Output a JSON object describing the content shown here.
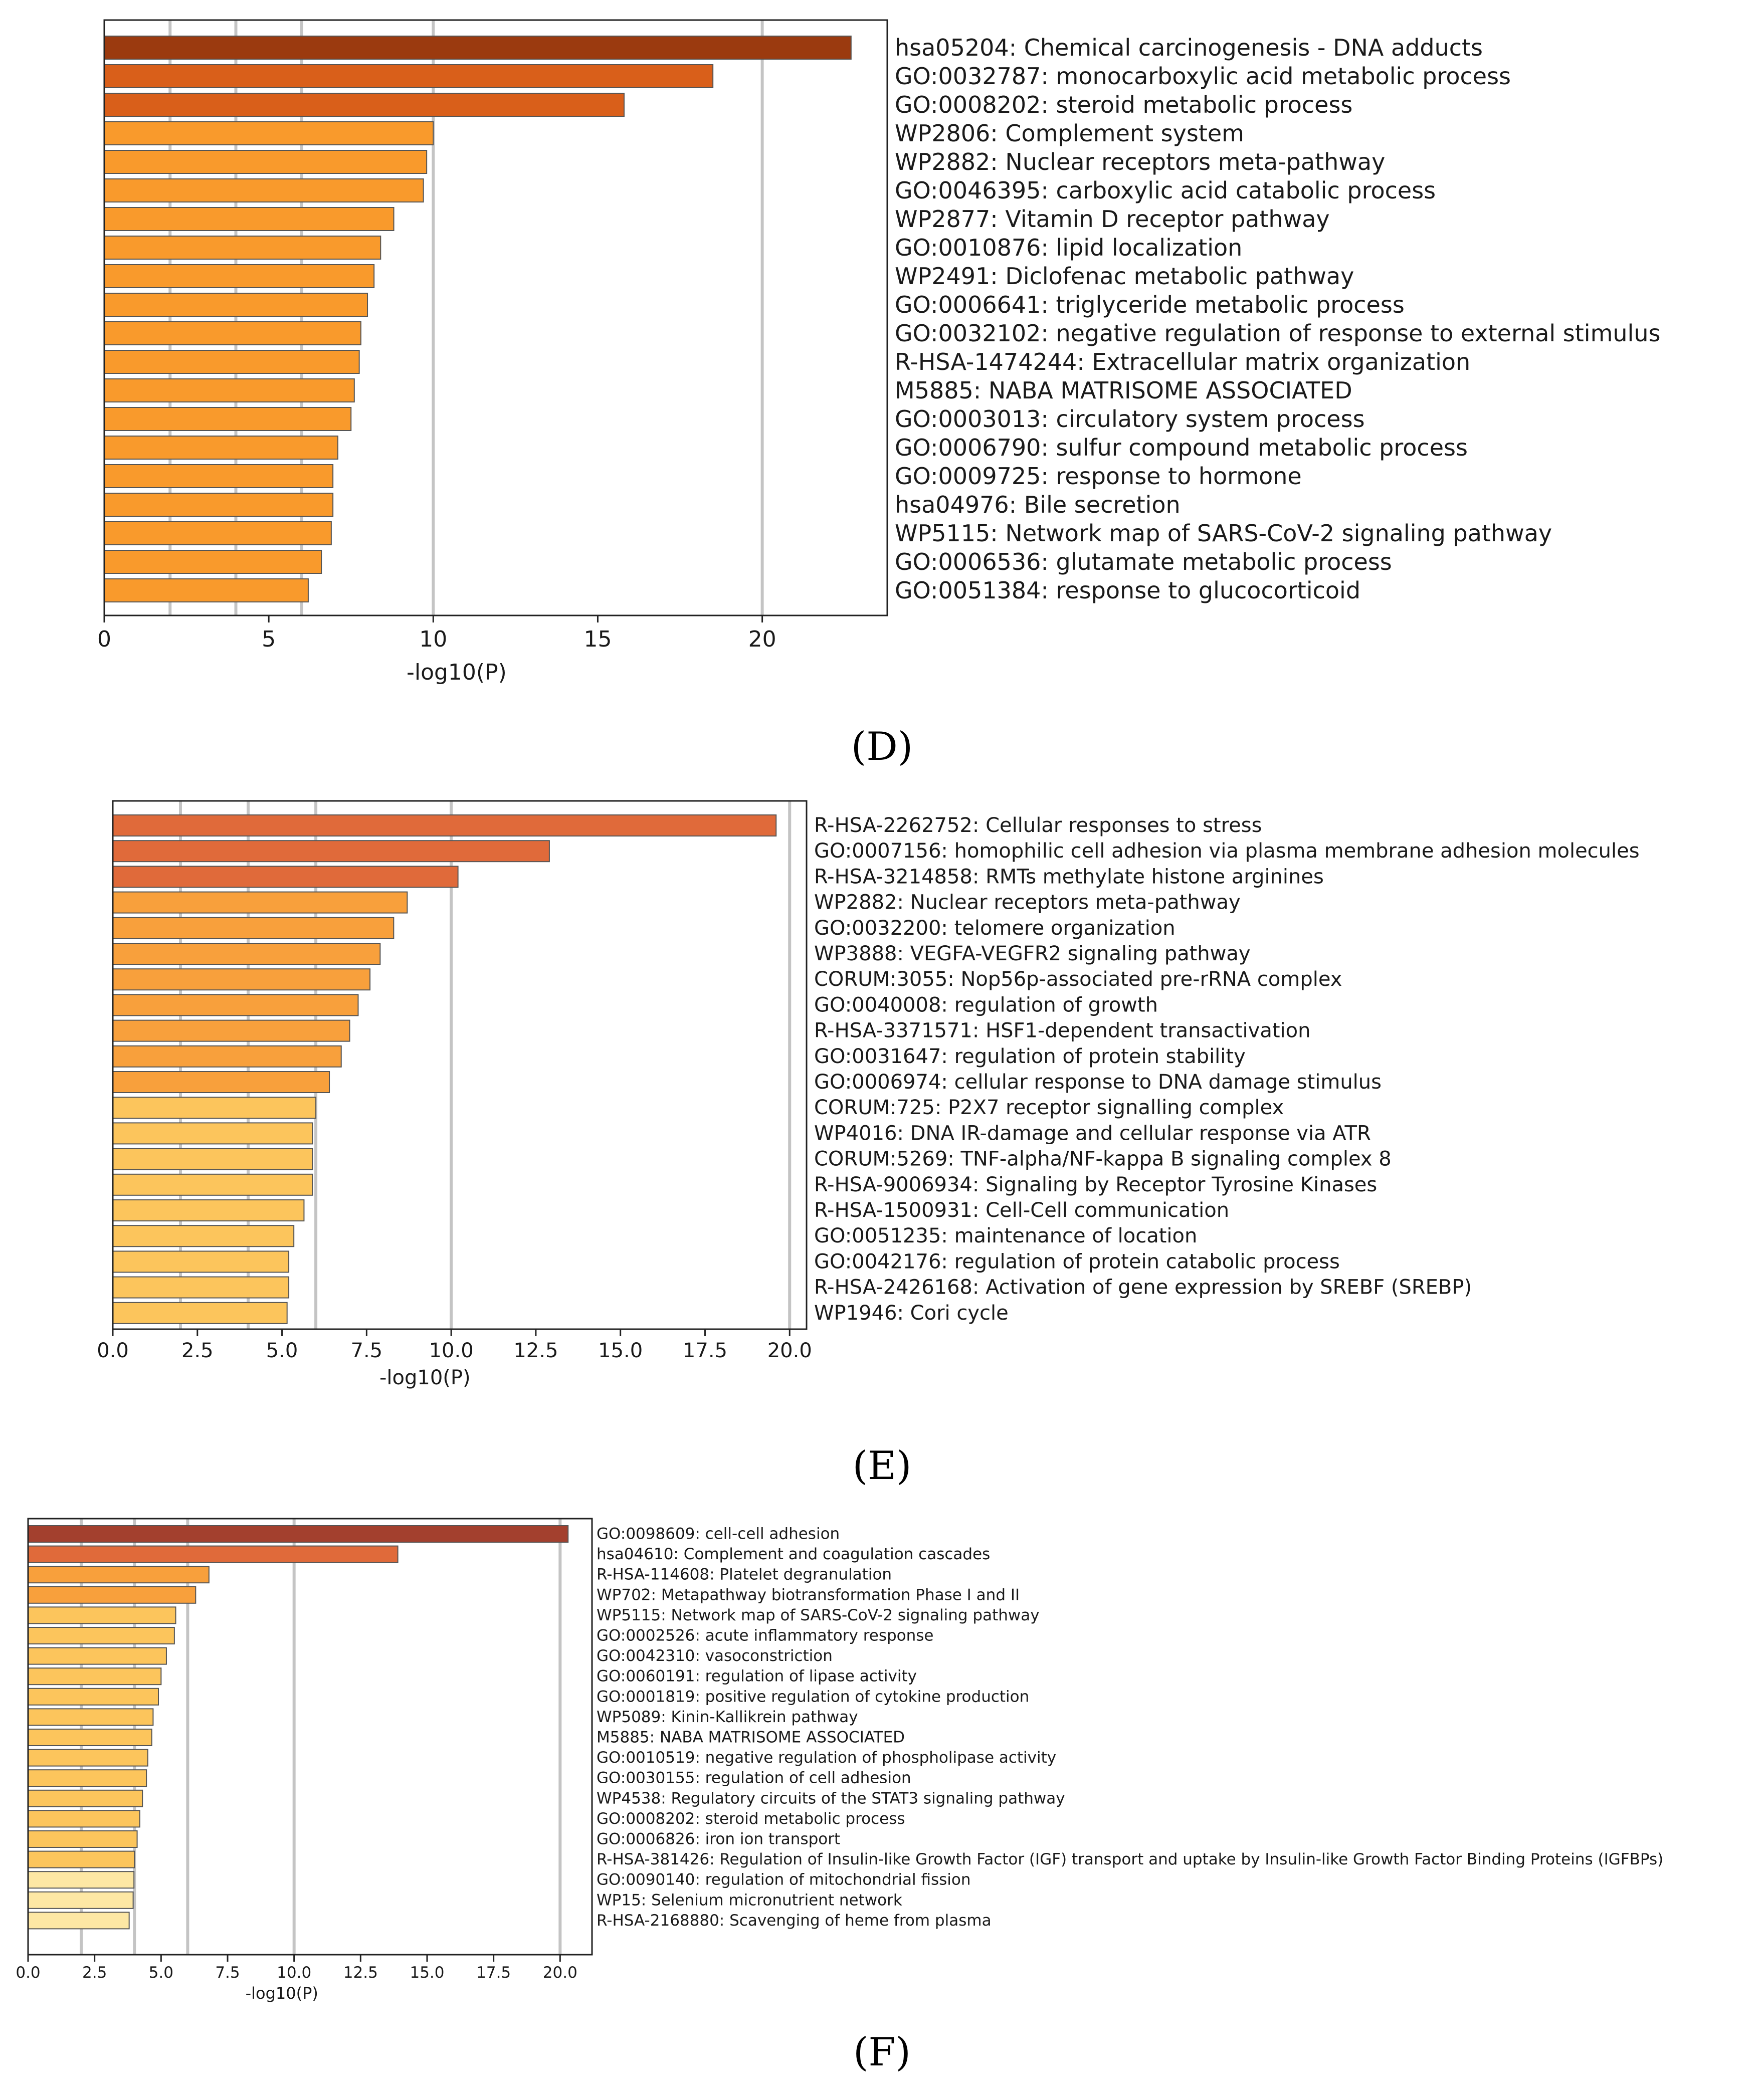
{
  "chart_data": [
    {
      "panel": "D",
      "type": "bar",
      "orientation": "horizontal",
      "xlabel": "-log10(P)",
      "xlim": [
        0,
        23.8
      ],
      "xticks": [
        0,
        5,
        10,
        15,
        20
      ],
      "xtick_labels": [
        "0",
        "5",
        "10",
        "15",
        "20"
      ],
      "gridlines": [
        2,
        4,
        6,
        10,
        20
      ],
      "categories": [
        "hsa05204: Chemical carcinogenesis - DNA adducts",
        "GO:0032787: monocarboxylic acid metabolic process",
        "GO:0008202: steroid metabolic process",
        "WP2806: Complement system",
        "WP2882: Nuclear receptors meta-pathway",
        "GO:0046395: carboxylic acid catabolic process",
        "WP2877: Vitamin D receptor pathway",
        "GO:0010876: lipid localization",
        "WP2491: Diclofenac metabolic pathway",
        "GO:0006641: triglyceride metabolic process",
        "GO:0032102: negative regulation of response to external stimulus",
        "R-HSA-1474244: Extracellular matrix organization",
        "M5885: NABA MATRISOME ASSOCIATED",
        "GO:0003013: circulatory system process",
        "GO:0006790: sulfur compound metabolic process",
        "GO:0009725: response to hormone",
        "hsa04976: Bile secretion",
        "WP5115: Network map of SARS-CoV-2 signaling pathway",
        "GO:0006536: glutamate metabolic process",
        "GO:0051384: response to glucocorticoid"
      ],
      "values": [
        22.7,
        18.5,
        15.8,
        10.0,
        9.8,
        9.7,
        8.8,
        8.4,
        8.2,
        8.0,
        7.8,
        7.75,
        7.6,
        7.5,
        7.1,
        6.95,
        6.95,
        6.9,
        6.6,
        6.2
      ],
      "colors": [
        "#9b3a0f",
        "#d95f1a",
        "#d95f1a",
        "#f99a2c",
        "#f99a2c",
        "#f99a2c",
        "#f99a2c",
        "#f99a2c",
        "#f99a2c",
        "#f99a2c",
        "#f99a2c",
        "#f99a2c",
        "#f99a2c",
        "#f99a2c",
        "#f99a2c",
        "#f99a2c",
        "#f99a2c",
        "#f99a2c",
        "#f99a2c",
        "#f99a2c"
      ]
    },
    {
      "panel": "E",
      "type": "bar",
      "orientation": "horizontal",
      "xlabel": "-log10(P)",
      "xlim": [
        0,
        20.5
      ],
      "xticks": [
        0,
        2.5,
        5,
        7.5,
        10,
        12.5,
        15,
        17.5,
        20
      ],
      "xtick_labels": [
        "0.0",
        "2.5",
        "5.0",
        "7.5",
        "10.0",
        "12.5",
        "15.0",
        "17.5",
        "20.0"
      ],
      "gridlines": [
        2,
        4,
        6,
        10,
        20
      ],
      "categories": [
        "R-HSA-2262752: Cellular responses to stress",
        "GO:0007156: homophilic cell adhesion via plasma membrane adhesion molecules",
        "R-HSA-3214858: RMTs methylate histone arginines",
        "WP2882: Nuclear receptors meta-pathway",
        "GO:0032200: telomere organization",
        "WP3888: VEGFA-VEGFR2 signaling pathway",
        "CORUM:3055: Nop56p-associated pre-rRNA complex",
        "GO:0040008: regulation of growth",
        "R-HSA-3371571: HSF1-dependent transactivation",
        "GO:0031647: regulation of protein stability",
        "GO:0006974: cellular response to DNA damage stimulus",
        "CORUM:725: P2X7 receptor signalling complex",
        "WP4016: DNA IR-damage and cellular response via ATR",
        "CORUM:5269: TNF-alpha/NF-kappa B signaling complex 8",
        "R-HSA-9006934: Signaling by Receptor Tyrosine Kinases",
        "R-HSA-1500931: Cell-Cell communication",
        "GO:0051235: maintenance of location",
        "GO:0042176: regulation of protein catabolic process",
        "R-HSA-2426168: Activation of gene expression by SREBF (SREBP)",
        "WP1946: Cori cycle"
      ],
      "values": [
        19.6,
        12.9,
        10.2,
        8.7,
        8.3,
        7.9,
        7.6,
        7.25,
        7.0,
        6.75,
        6.4,
        6.0,
        5.9,
        5.9,
        5.9,
        5.65,
        5.35,
        5.2,
        5.2,
        5.15
      ],
      "colors": [
        "#e06a3a",
        "#e06a3a",
        "#e06a3a",
        "#f8a03c",
        "#f8a03c",
        "#f8a03c",
        "#f8a03c",
        "#f8a03c",
        "#f8a03c",
        "#f8a03c",
        "#f8a03c",
        "#fcc55c",
        "#fcc55c",
        "#fcc55c",
        "#fcc55c",
        "#fcc55c",
        "#fcc55c",
        "#fcc55c",
        "#fcc55c",
        "#fcc55c"
      ]
    },
    {
      "panel": "F",
      "type": "bar",
      "orientation": "horizontal",
      "xlabel": "-log10(P)",
      "xlim": [
        0,
        21.2
      ],
      "xticks": [
        0,
        2.5,
        5,
        7.5,
        10,
        12.5,
        15,
        17.5,
        20
      ],
      "xtick_labels": [
        "0.0",
        "2.5",
        "5.0",
        "7.5",
        "10.0",
        "12.5",
        "15.0",
        "17.5",
        "20.0"
      ],
      "gridlines": [
        2,
        4,
        6,
        10,
        20
      ],
      "categories": [
        "GO:0098609: cell-cell adhesion",
        "hsa04610: Complement and coagulation cascades",
        "R-HSA-114608: Platelet degranulation",
        "WP702: Metapathway biotransformation Phase I and II",
        "WP5115: Network map of SARS-CoV-2 signaling pathway",
        "GO:0002526: acute inflammatory response",
        "GO:0042310: vasoconstriction",
        "GO:0060191: regulation of lipase activity",
        "GO:0001819: positive regulation of cytokine production",
        "WP5089: Kinin-Kallikrein pathway",
        "M5885: NABA MATRISOME ASSOCIATED",
        "GO:0010519: negative regulation of phospholipase activity",
        "GO:0030155: regulation of cell adhesion",
        "WP4538: Regulatory circuits of the STAT3 signaling pathway",
        "GO:0008202: steroid metabolic process",
        "GO:0006826: iron ion transport",
        "R-HSA-381426: Regulation of Insulin-like Growth Factor (IGF) transport and uptake by Insulin-like Growth Factor Binding Proteins (IGFBPs)",
        "GO:0090140: regulation of mitochondrial fission",
        "WP15: Selenium micronutrient network",
        "R-HSA-2168880: Scavenging of heme from plasma"
      ],
      "values": [
        20.3,
        13.9,
        6.8,
        6.3,
        5.55,
        5.5,
        5.2,
        5.0,
        4.9,
        4.7,
        4.65,
        4.5,
        4.45,
        4.3,
        4.2,
        4.1,
        4.0,
        3.98,
        3.95,
        3.8
      ],
      "colors": [
        "#a3402e",
        "#e06a3a",
        "#f8a03c",
        "#f8a03c",
        "#fcc55c",
        "#fcc55c",
        "#fcc55c",
        "#fcc55c",
        "#fcc55c",
        "#fcc55c",
        "#fcc55c",
        "#fcc55c",
        "#fcc55c",
        "#fcc55c",
        "#fcc55c",
        "#fcc55c",
        "#fcc55c",
        "#fde7a4",
        "#fde7a4",
        "#fde7a4"
      ]
    }
  ],
  "captions": {
    "D": "(D)",
    "E": "(E)",
    "F": "(F)"
  }
}
